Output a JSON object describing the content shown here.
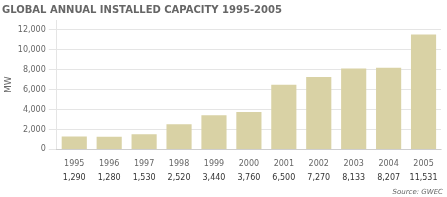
{
  "chart_data": {
    "type": "bar",
    "title": "GLOBAL ANNUAL INSTALLED CAPACITY 1995-2005",
    "ylabel": "MW",
    "categories": [
      "1995",
      "1996",
      "1997",
      "1998",
      "1999",
      "2000",
      "2001",
      "2002",
      "2003",
      "2004",
      "2005"
    ],
    "values": [
      1290,
      1280,
      1530,
      2520,
      3440,
      3760,
      6500,
      7270,
      8133,
      8207,
      11531
    ],
    "value_labels": [
      "1,290",
      "1,280",
      "1,530",
      "2,520",
      "3,440",
      "3,760",
      "6,500",
      "7,270",
      "8,133",
      "8,207",
      "11,531"
    ],
    "data_labels": true,
    "color": "#d9d2a5",
    "ylim": [
      0,
      13000
    ],
    "yticks": [
      0,
      {
        "value": 2000,
        "label": "2,000"
      },
      {
        "value": 4000,
        "label": "4,000"
      },
      {
        "value": 6000,
        "label": "6,000"
      },
      {
        "value": 8000,
        "label": "8,000"
      },
      {
        "value": 10000,
        "label": "10,000"
      },
      {
        "value": 12000,
        "label": "12,000"
      }
    ],
    "grid": true,
    "annotations": [
      "Source: GWEC"
    ]
  }
}
